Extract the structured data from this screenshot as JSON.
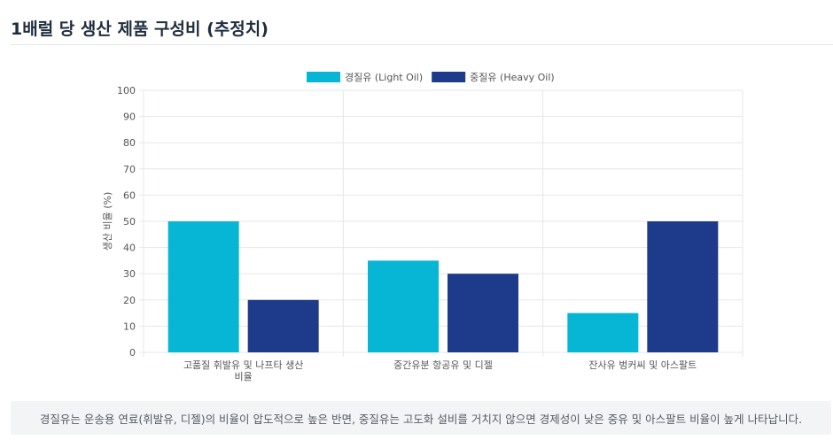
{
  "page": {
    "title": "1배럴 당 생산 제품 구성비 (추정치)"
  },
  "colors": {
    "light_oil": "#06b6d4",
    "heavy_oil": "#1e3a8a",
    "grid": "#e5e7eb",
    "axis_text": "#555555"
  },
  "chart_data": {
    "type": "bar",
    "categories": [
      [
        "고품질 휘발유 및 나프타 생산",
        "비율"
      ],
      [
        "중간유분 항공유 및 디젤"
      ],
      [
        "잔사유 벙커씨 및 아스팔트"
      ]
    ],
    "series": [
      {
        "name": "경질유 (Light Oil)",
        "values": [
          50,
          35,
          15
        ],
        "color": "#06b6d4"
      },
      {
        "name": "중질유 (Heavy Oil)",
        "values": [
          20,
          30,
          50
        ],
        "color": "#1e3a8a"
      }
    ],
    "title": "",
    "xlabel": "",
    "ylabel": "생산 비율 (%)",
    "ylim": [
      0,
      100
    ],
    "yticks": [
      0,
      10,
      20,
      30,
      40,
      50,
      60,
      70,
      80,
      90,
      100
    ],
    "grid": true,
    "legend": "top-center"
  },
  "footer": {
    "note": "경질유는 운송용 연료(휘발유, 디젤)의 비율이 압도적으로 높은 반면, 중질유는 고도화 설비를 거치지 않으면 경제성이 낮은 중유 및 아스팔트 비율이 높게 나타납니다."
  }
}
